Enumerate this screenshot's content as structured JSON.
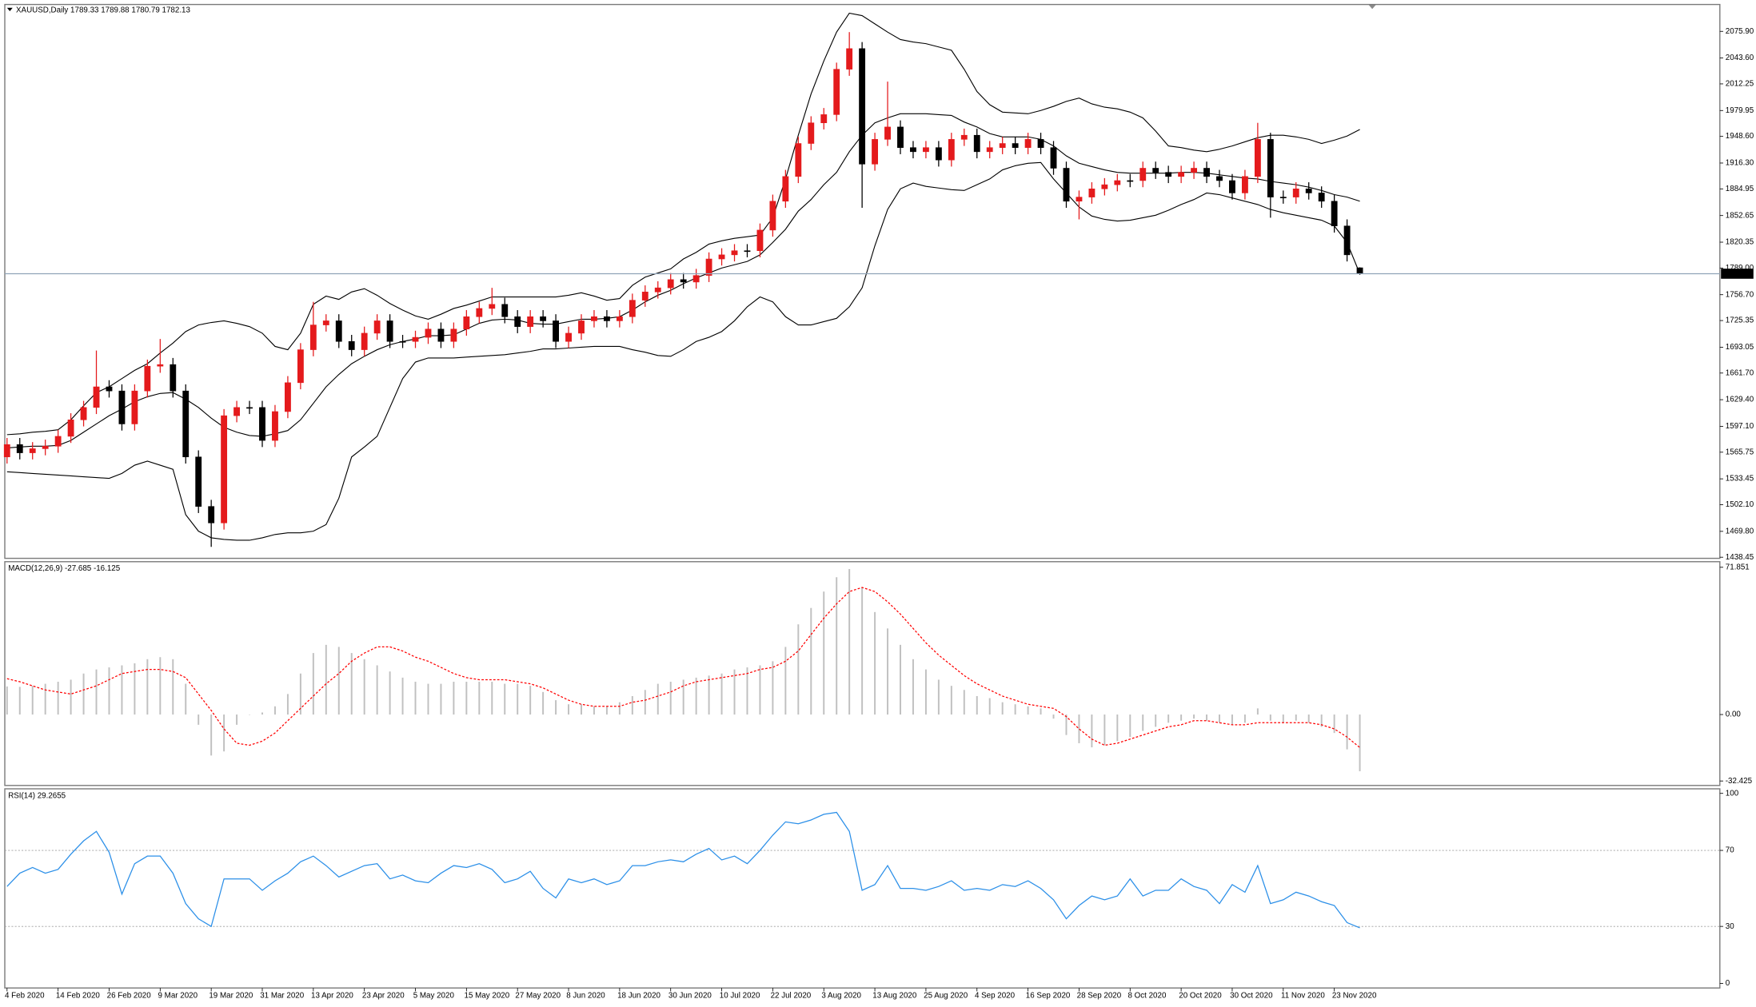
{
  "chart_data": [
    {
      "type": "candlestick",
      "title": "XAUUSD,Daily",
      "open": [
        1560,
        1575,
        1565,
        1570,
        1573,
        1585,
        1605,
        1620,
        1645,
        1640,
        1600,
        1640,
        1670,
        1672,
        1640,
        1560,
        1500,
        1480,
        1610,
        1620,
        1620,
        1580,
        1615,
        1650,
        1690,
        1720,
        1725,
        1700,
        1690,
        1710,
        1725,
        1700,
        1700,
        1705,
        1715,
        1700,
        1715,
        1730,
        1740,
        1745,
        1730,
        1718,
        1730,
        1725,
        1700,
        1710,
        1725,
        1730,
        1725,
        1730,
        1750,
        1760,
        1765,
        1775,
        1772,
        1780,
        1800,
        1805,
        1810,
        1810,
        1835,
        1870,
        1900,
        1940,
        1965,
        1975,
        2030,
        2055,
        1915,
        1945,
        1960,
        1935,
        1930,
        1935,
        1920,
        1945,
        1950,
        1930,
        1935,
        1940,
        1935,
        1945,
        1935,
        1910,
        1870,
        1875,
        1885,
        1890,
        1895,
        1895,
        1910,
        1905,
        1900,
        1905,
        1910,
        1900,
        1895,
        1880,
        1900,
        1945,
        1875,
        1875,
        1885,
        1880,
        1870,
        1840,
        1789.33
      ],
      "high": [
        1583,
        1583,
        1578,
        1581,
        1593,
        1613,
        1628,
        1689,
        1653,
        1648,
        1648,
        1678,
        1703,
        1680,
        1648,
        1568,
        1508,
        1618,
        1628,
        1628,
        1628,
        1623,
        1658,
        1698,
        1748,
        1733,
        1733,
        1708,
        1718,
        1733,
        1733,
        1708,
        1713,
        1723,
        1723,
        1723,
        1738,
        1748,
        1765,
        1753,
        1738,
        1738,
        1738,
        1733,
        1718,
        1733,
        1738,
        1738,
        1738,
        1758,
        1768,
        1773,
        1783,
        1783,
        1788,
        1808,
        1813,
        1818,
        1818,
        1843,
        1878,
        1908,
        1948,
        1973,
        1983,
        2038,
        2075,
        2063,
        1953,
        2015,
        1968,
        1943,
        1943,
        1943,
        1953,
        1958,
        1958,
        1943,
        1948,
        1948,
        1953,
        1953,
        1943,
        1918,
        1883,
        1893,
        1898,
        1903,
        1903,
        1918,
        1918,
        1913,
        1913,
        1918,
        1918,
        1908,
        1903,
        1908,
        1965,
        1953,
        1883,
        1893,
        1893,
        1888,
        1878,
        1848,
        1789.88
      ],
      "low": [
        1552,
        1557,
        1557,
        1562,
        1565,
        1577,
        1597,
        1612,
        1632,
        1592,
        1592,
        1632,
        1662,
        1632,
        1552,
        1492,
        1451,
        1472,
        1602,
        1612,
        1572,
        1572,
        1607,
        1642,
        1682,
        1712,
        1692,
        1682,
        1682,
        1702,
        1692,
        1692,
        1692,
        1697,
        1692,
        1692,
        1707,
        1722,
        1732,
        1722,
        1710,
        1710,
        1717,
        1692,
        1692,
        1702,
        1717,
        1717,
        1717,
        1722,
        1742,
        1752,
        1757,
        1764,
        1764,
        1772,
        1792,
        1797,
        1802,
        1802,
        1827,
        1862,
        1892,
        1932,
        1957,
        1967,
        2022,
        1862,
        1907,
        1937,
        1927,
        1922,
        1922,
        1912,
        1912,
        1937,
        1922,
        1922,
        1927,
        1927,
        1927,
        1927,
        1902,
        1862,
        1848,
        1867,
        1877,
        1882,
        1887,
        1887,
        1897,
        1892,
        1892,
        1897,
        1892,
        1887,
        1872,
        1872,
        1892,
        1850,
        1867,
        1867,
        1872,
        1862,
        1832,
        1797,
        1780.79
      ],
      "close": [
        1575,
        1565,
        1570,
        1573,
        1585,
        1605,
        1620,
        1645,
        1640,
        1600,
        1640,
        1670,
        1672,
        1640,
        1560,
        1500,
        1480,
        1610,
        1620,
        1620,
        1580,
        1615,
        1650,
        1690,
        1720,
        1725,
        1700,
        1690,
        1710,
        1725,
        1700,
        1700,
        1705,
        1715,
        1700,
        1715,
        1730,
        1740,
        1745,
        1730,
        1718,
        1730,
        1725,
        1700,
        1710,
        1725,
        1730,
        1725,
        1730,
        1750,
        1760,
        1765,
        1775,
        1772,
        1780,
        1800,
        1805,
        1810,
        1810,
        1835,
        1870,
        1900,
        1940,
        1965,
        1975,
        2030,
        2055,
        1915,
        1945,
        1960,
        1935,
        1930,
        1935,
        1920,
        1945,
        1950,
        1930,
        1935,
        1940,
        1935,
        1945,
        1935,
        1910,
        1870,
        1875,
        1885,
        1890,
        1895,
        1895,
        1910,
        1905,
        1900,
        1905,
        1910,
        1900,
        1895,
        1880,
        1900,
        1945,
        1875,
        1875,
        1885,
        1880,
        1870,
        1840,
        1805,
        1782.13
      ],
      "bands": {
        "upper": [
          1587,
          1588,
          1590,
          1591,
          1593,
          1605,
          1622,
          1638,
          1645,
          1655,
          1665,
          1673,
          1686,
          1698,
          1712,
          1720,
          1723,
          1725,
          1722,
          1718,
          1710,
          1694,
          1690,
          1710,
          1745,
          1755,
          1751,
          1760,
          1764,
          1756,
          1746,
          1738,
          1731,
          1727,
          1733,
          1740,
          1744,
          1749,
          1754,
          1754,
          1754,
          1754,
          1754,
          1754,
          1756,
          1759,
          1755,
          1750,
          1752,
          1768,
          1778,
          1783,
          1788,
          1800,
          1808,
          1818,
          1822,
          1825,
          1827,
          1829,
          1850,
          1897,
          1950,
          2000,
          2040,
          2075,
          2098,
          2095,
          2085,
          2075,
          2066,
          2063,
          2061,
          2057,
          2053,
          2030,
          2003,
          1987,
          1978,
          1977,
          1976,
          1980,
          1985,
          1991,
          1995,
          1988,
          1984,
          1982,
          1978,
          1971,
          1955,
          1937,
          1935,
          1932,
          1930,
          1933,
          1937,
          1942,
          1947,
          1950,
          1950,
          1948,
          1945,
          1940,
          1944,
          1949,
          1957
        ],
        "middle": [
          1571,
          1572,
          1573,
          1573,
          1574,
          1580,
          1590,
          1600,
          1610,
          1618,
          1627,
          1633,
          1637,
          1638,
          1630,
          1620,
          1607,
          1596,
          1590,
          1586,
          1585,
          1588,
          1592,
          1605,
          1625,
          1645,
          1660,
          1673,
          1682,
          1690,
          1696,
          1700,
          1703,
          1707,
          1707,
          1708,
          1715,
          1722,
          1726,
          1727,
          1726,
          1722,
          1721,
          1721,
          1724,
          1727,
          1727,
          1728,
          1730,
          1738,
          1748,
          1756,
          1762,
          1770,
          1777,
          1783,
          1789,
          1793,
          1797,
          1805,
          1820,
          1836,
          1858,
          1872,
          1890,
          1905,
          1930,
          1950,
          1965,
          1971,
          1976,
          1976,
          1976,
          1975,
          1974,
          1966,
          1960,
          1952,
          1948,
          1948,
          1948,
          1945,
          1937,
          1925,
          1916,
          1912,
          1908,
          1905,
          1904,
          1904,
          1904,
          1904,
          1905,
          1905,
          1904,
          1902,
          1900,
          1898,
          1897,
          1894,
          1892,
          1890,
          1887,
          1883,
          1878,
          1875,
          1870
        ],
        "lower": [
          1542,
          1541,
          1540,
          1539,
          1538,
          1537,
          1536,
          1535,
          1534,
          1540,
          1550,
          1555,
          1550,
          1545,
          1490,
          1470,
          1462,
          1460,
          1459,
          1459,
          1462,
          1466,
          1468,
          1468,
          1470,
          1478,
          1510,
          1560,
          1572,
          1585,
          1620,
          1655,
          1675,
          1680,
          1680,
          1680,
          1681,
          1682,
          1683,
          1684,
          1686,
          1688,
          1691,
          1691,
          1692,
          1693,
          1694,
          1694,
          1694,
          1690,
          1687,
          1683,
          1682,
          1690,
          1700,
          1705,
          1712,
          1725,
          1742,
          1754,
          1748,
          1730,
          1720,
          1720,
          1724,
          1728,
          1742,
          1765,
          1816,
          1860,
          1885,
          1892,
          1888,
          1886,
          1884,
          1883,
          1890,
          1897,
          1908,
          1913,
          1916,
          1917,
          1897,
          1880,
          1863,
          1852,
          1848,
          1846,
          1847,
          1850,
          1853,
          1859,
          1866,
          1872,
          1880,
          1878,
          1874,
          1870,
          1866,
          1860,
          1856,
          1853,
          1850,
          1847,
          1840,
          1820,
          1782
        ],
        "color": "#000000"
      },
      "up_color": "#e41a1c",
      "down_color": "#000000",
      "price_line": true,
      "price_line_color": "#8fa3b8",
      "ylim": [
        1437.1,
        2108.5
      ],
      "yticks": [
        {
          "value": 2075.9,
          "label": "2075.90"
        },
        {
          "value": 2043.6,
          "label": "2043.60"
        },
        2012.25,
        1979.95,
        {
          "value": 1948.6,
          "label": "1948.60"
        },
        {
          "value": 1916.3,
          "label": "1916.30"
        },
        1884.95,
        1852.65,
        1820.35,
        {
          "value": 1789,
          "label": "1789.00"
        },
        {
          "value": 1756.7,
          "label": "1756.70"
        },
        1725.35,
        1693.05,
        {
          "value": 1661.7,
          "label": "1661.70"
        },
        {
          "value": 1629.4,
          "label": "1629.40"
        },
        {
          "value": 1597.1,
          "label": "1597.10"
        },
        1565.75,
        1533.45,
        {
          "value": 1502.1,
          "label": "1502.10"
        },
        {
          "value": 1469.8,
          "label": "1469.80"
        },
        1438.45
      ]
    },
    {
      "type": "macd",
      "title": "MACD(12,26,9)",
      "histogram": [
        13.7,
        13.5,
        14,
        15,
        16,
        17,
        20,
        22,
        23,
        24,
        25,
        27,
        28,
        27,
        15,
        -5,
        -20,
        -18,
        -5,
        0,
        1,
        4,
        10,
        20,
        30,
        34,
        33,
        30,
        27,
        24,
        21,
        18,
        16,
        15,
        15,
        16,
        16,
        16,
        16,
        15,
        15,
        14,
        11,
        7,
        5,
        5,
        4,
        4,
        6,
        9,
        12,
        15,
        16,
        17,
        18,
        19,
        20,
        22,
        23,
        24,
        26,
        33,
        44,
        52,
        60,
        67,
        71,
        62,
        50,
        42,
        34,
        27,
        22,
        17,
        14,
        12,
        9,
        8,
        6,
        5,
        4,
        3,
        -2,
        -10,
        -14,
        -16,
        -15,
        -13,
        -11,
        -8,
        -6,
        -4,
        -3,
        -2,
        -3,
        -4,
        -5,
        -4,
        3,
        -3,
        -4,
        -3,
        -4,
        -6,
        -9,
        -17,
        -27.685
      ],
      "signal": [
        17.5,
        16,
        14,
        12,
        11,
        10,
        12,
        14,
        17,
        20,
        21,
        22,
        22,
        21,
        18,
        10,
        2,
        -7,
        -14,
        -15,
        -13,
        -9,
        -3,
        3,
        9,
        15,
        20,
        26,
        30,
        33,
        33,
        31,
        28,
        26,
        23,
        20,
        18,
        17,
        17,
        17,
        16,
        15,
        13,
        10,
        7,
        5,
        4,
        4,
        4,
        6,
        7,
        9,
        11,
        14,
        16,
        17,
        18,
        19,
        20,
        22,
        23,
        26,
        31,
        39,
        47,
        54,
        60,
        62,
        60,
        55,
        49,
        42,
        35,
        29,
        24,
        19,
        15,
        12,
        9,
        7,
        5,
        4,
        3,
        -1,
        -7,
        -12,
        -15,
        -14,
        -12,
        -10,
        -8,
        -6,
        -5,
        -3,
        -3,
        -4,
        -5,
        -5,
        -4,
        -4,
        -4,
        -4,
        -4,
        -5,
        -7,
        -11,
        -16.125
      ],
      "histogram_color": "#c0c0c0",
      "signal_color": "#ff0000",
      "ylim": [
        -34.61,
        74.58
      ],
      "yticks": [
        71.851,
        {
          "value": 0,
          "label": "0.00"
        },
        -32.425
      ]
    },
    {
      "type": "line",
      "title": "RSI(14)",
      "categories": [
        "4 Feb 2020",
        null,
        null,
        null,
        "14 Feb 2020",
        null,
        null,
        null,
        "26 Feb 2020",
        null,
        null,
        null,
        "9 Mar 2020",
        null,
        null,
        null,
        "19 Mar 2020",
        null,
        null,
        null,
        "31 Mar 2020",
        null,
        null,
        null,
        "13 Apr 2020",
        null,
        null,
        null,
        "23 Apr 2020",
        null,
        null,
        null,
        "5 May 2020",
        null,
        null,
        null,
        "15 May 2020",
        null,
        null,
        null,
        "27 May 2020",
        null,
        null,
        null,
        "8 Jun 2020",
        null,
        null,
        null,
        "18 Jun 2020",
        null,
        null,
        null,
        "30 Jun 2020",
        null,
        null,
        null,
        "10 Jul 2020",
        null,
        null,
        null,
        "22 Jul 2020",
        null,
        null,
        null,
        "3 Aug 2020",
        null,
        null,
        null,
        "13 Aug 2020",
        null,
        null,
        null,
        "25 Aug 2020",
        null,
        null,
        null,
        "4 Sep 2020",
        null,
        null,
        null,
        "16 Sep 2020",
        null,
        null,
        null,
        "28 Sep 2020",
        null,
        null,
        null,
        "8 Oct 2020",
        null,
        null,
        null,
        "20 Oct 2020",
        null,
        null,
        null,
        "30 Oct 2020",
        null,
        null,
        null,
        "11 Nov 2020",
        null,
        null,
        null,
        "23 Nov 2020",
        null,
        null
      ],
      "values": [
        51,
        58,
        61,
        58,
        60,
        68,
        75,
        80,
        69,
        47,
        63,
        67,
        67,
        58,
        42,
        34,
        30,
        55,
        55,
        55,
        49,
        54,
        58,
        64,
        67,
        62,
        56,
        59,
        62,
        63,
        55,
        57,
        54,
        53,
        58,
        62,
        61,
        63,
        60,
        53,
        55,
        59,
        50,
        45,
        55,
        53,
        55,
        52,
        54,
        62,
        62,
        64,
        65,
        64,
        68,
        71,
        65,
        67,
        63,
        70,
        78,
        85,
        84,
        86,
        89,
        90,
        80,
        49,
        52,
        62,
        50,
        50,
        49,
        51,
        54,
        49,
        50,
        49,
        52,
        51,
        54,
        50,
        44,
        34,
        41,
        46,
        44,
        46,
        55,
        46,
        49,
        49,
        55,
        51,
        49,
        42,
        52,
        48,
        62,
        42,
        44,
        48,
        46,
        43,
        41,
        32,
        29.2655
      ],
      "color": "#2b8fe8",
      "level_lines": true,
      "ylim": [
        -2.4,
        102.4
      ],
      "yticks": [
        100,
        70,
        30,
        0
      ]
    }
  ]
}
